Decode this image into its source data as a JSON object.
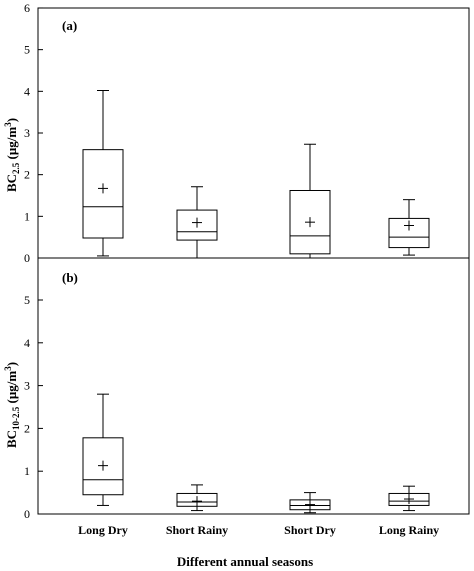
{
  "chart_data": [
    {
      "type": "box",
      "panel_label": "(a)",
      "ylabel": {
        "base": "BC",
        "sub": "2.5",
        "unit_pre": " (μg/m",
        "unit_sup": "3",
        "unit_post": ")"
      },
      "ylim": [
        0,
        6
      ],
      "yticks": [
        "0",
        "1",
        "2",
        "3",
        "4",
        "5",
        "6"
      ],
      "categories": [
        "Long Dry",
        "Short Rainy",
        "Short Dry",
        "Long Rainy"
      ],
      "boxes": [
        {
          "whisker_low": 0.05,
          "q1": 0.48,
          "median": 1.23,
          "q3": 2.6,
          "whisker_high": 4.02,
          "mean": 1.67
        },
        {
          "whisker_low": 0.0,
          "q1": 0.43,
          "median": 0.63,
          "q3": 1.15,
          "whisker_high": 1.71,
          "mean": 0.85
        },
        {
          "whisker_low": 0.0,
          "q1": 0.1,
          "median": 0.53,
          "q3": 1.62,
          "whisker_high": 2.73,
          "mean": 0.86
        },
        {
          "whisker_low": 0.07,
          "q1": 0.25,
          "median": 0.5,
          "q3": 0.95,
          "whisker_high": 1.4,
          "mean": 0.78
        }
      ]
    },
    {
      "type": "box",
      "panel_label": "(b)",
      "ylabel": {
        "base": "BC",
        "sub": "10-2.5",
        "unit_pre": " (μg/m",
        "unit_sup": "3",
        "unit_post": ")"
      },
      "ylim": [
        0,
        6
      ],
      "yticks": [
        "0",
        "1",
        "2",
        "3",
        "4",
        "5"
      ],
      "categories": [
        "Long Dry",
        "Short Rainy",
        "Short Dry",
        "Long Rainy"
      ],
      "boxes": [
        {
          "whisker_low": 0.2,
          "q1": 0.45,
          "median": 0.8,
          "q3": 1.78,
          "whisker_high": 2.8,
          "mean": 1.13
        },
        {
          "whisker_low": 0.08,
          "q1": 0.18,
          "median": 0.28,
          "q3": 0.48,
          "whisker_high": 0.68,
          "mean": 0.3
        },
        {
          "whisker_low": 0.03,
          "q1": 0.1,
          "median": 0.2,
          "q3": 0.33,
          "whisker_high": 0.5,
          "mean": 0.22
        },
        {
          "whisker_low": 0.08,
          "q1": 0.2,
          "median": 0.3,
          "q3": 0.48,
          "whisker_high": 0.65,
          "mean": 0.35
        }
      ]
    }
  ],
  "xlabel": "Different annual seasons",
  "colors": {
    "axis": "#000000",
    "box_fill": "#ffffff"
  }
}
